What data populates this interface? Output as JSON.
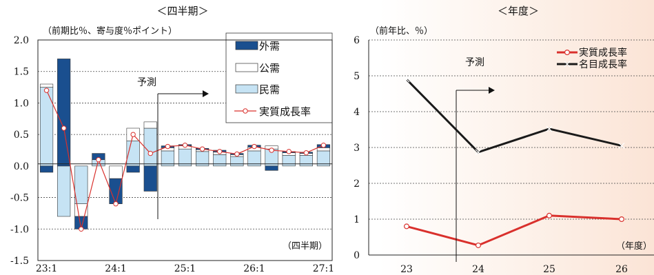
{
  "chart_data": [
    {
      "type": "bar",
      "title": "＜四半期＞",
      "unit_label": "（前期比％、寄与度％ポイント）",
      "x_unit": "（四半期）",
      "forecast_label": "予測",
      "ylim": [
        -1.5,
        2.0
      ],
      "yticks": [
        "2.0",
        "1.5",
        "1.0",
        "0.5",
        "0.0",
        "-0.5",
        "-1.0",
        "-1.5"
      ],
      "xticks": [
        "23:1",
        "24:1",
        "25:1",
        "26:1",
        "27:1"
      ],
      "legend": [
        "外需",
        "公需",
        "民需",
        "実質成長率"
      ],
      "colors": {
        "external": "#1a4f8f",
        "public": "#ffffff",
        "private": "#c6e3f4",
        "growth": "#d9302c"
      },
      "series": [
        {
          "name": "外需",
          "values": [
            -0.1,
            1.7,
            -0.2,
            0.1,
            -0.4,
            -0.1,
            -0.4,
            0.03,
            0.02,
            0.02,
            0.03,
            0.02,
            0.03,
            -0.07,
            0.02,
            0.02,
            0.05
          ]
        },
        {
          "name": "公需",
          "values": [
            0.05,
            0.0,
            -0.2,
            0.0,
            -0.2,
            0.2,
            0.1,
            0.05,
            0.05,
            0.03,
            0.04,
            0.03,
            0.06,
            0.05,
            0.04,
            0.03,
            0.05
          ]
        },
        {
          "name": "民需",
          "values": [
            1.25,
            -0.8,
            -0.6,
            0.1,
            0.0,
            0.4,
            0.6,
            0.24,
            0.27,
            0.23,
            0.18,
            0.15,
            0.24,
            0.27,
            0.17,
            0.17,
            0.24
          ]
        },
        {
          "name": "実質成長率",
          "values": [
            1.2,
            0.6,
            -1.0,
            0.1,
            -0.6,
            0.5,
            0.2,
            0.31,
            0.33,
            0.27,
            0.23,
            0.19,
            0.31,
            0.25,
            0.23,
            0.21,
            0.33
          ]
        }
      ]
    },
    {
      "type": "line",
      "title": "＜年度＞",
      "unit_label": "（前年比、％）",
      "x_unit": "（年度）",
      "forecast_label": "予測",
      "ylim": [
        0,
        6
      ],
      "yticks": [
        "0",
        "1",
        "2",
        "3",
        "4",
        "5",
        "6"
      ],
      "categories": [
        "23",
        "24",
        "25",
        "26"
      ],
      "colors": {
        "real": "#d9302c",
        "nominal": "#1a1a1a"
      },
      "series": [
        {
          "name": "実質成長率",
          "values": [
            0.8,
            0.27,
            1.1,
            1.0
          ]
        },
        {
          "name": "名目成長率",
          "values": [
            4.9,
            2.87,
            3.52,
            3.05
          ]
        }
      ]
    }
  ]
}
